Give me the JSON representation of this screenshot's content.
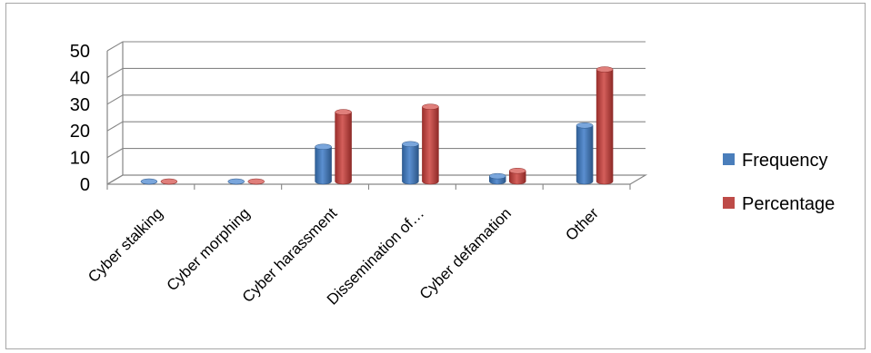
{
  "chart_data": {
    "type": "bar",
    "categories": [
      "Cyber stalking",
      "Cyber morphing",
      "Cyber harassment",
      "Dissemination of…",
      "Cyber defamation",
      "Other"
    ],
    "series": [
      {
        "name": "Frequency",
        "values": [
          0,
          0,
          13,
          14,
          2,
          21
        ],
        "color": "#4a7ebb"
      },
      {
        "name": "Percentage",
        "values": [
          0,
          0,
          26,
          28,
          4,
          42
        ],
        "color": "#be4b48"
      }
    ],
    "y_ticks": [
      "0",
      "10",
      "20",
      "30",
      "40",
      "50"
    ],
    "ylim": [
      0,
      50
    ],
    "grid": true,
    "legend_position": "right",
    "style": "3d-cylinder"
  }
}
